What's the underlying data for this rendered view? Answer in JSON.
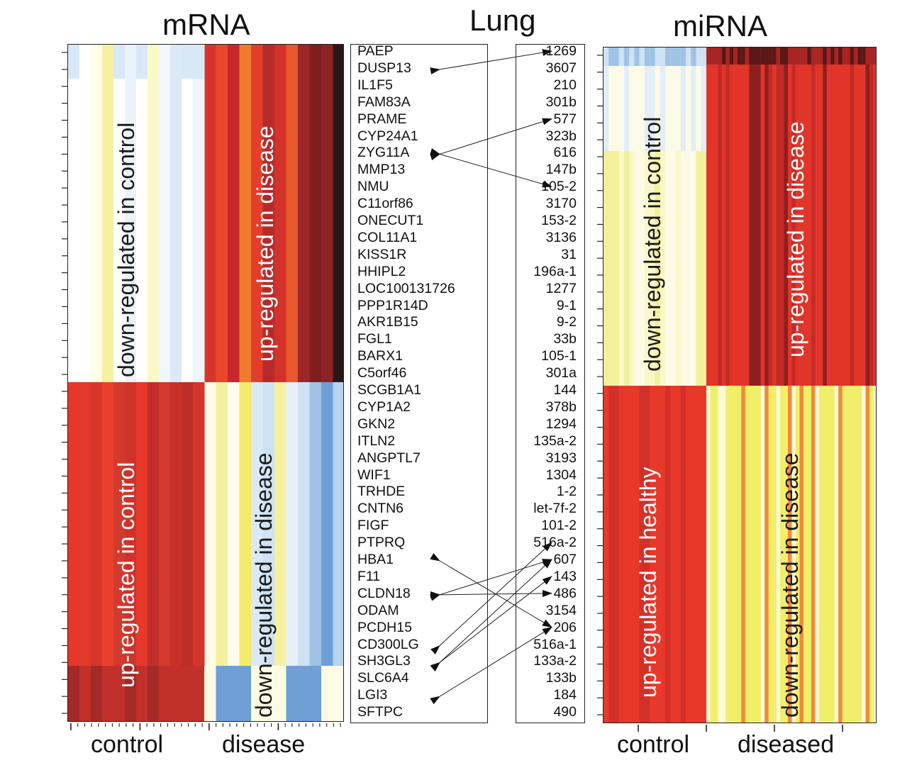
{
  "titles": {
    "mrna": "mRNA",
    "lung": "Lung",
    "mirna": "miRNA"
  },
  "mrna_panel": {
    "quadrant_labels": {
      "top_left": "down-regulated in control",
      "top_right": "up-regulated in disease",
      "bottom_left": "up-regulated in control",
      "bottom_right": "down-regulated in disease"
    },
    "x_labels": {
      "left": "control",
      "right": "disease"
    }
  },
  "mirna_panel": {
    "quadrant_labels": {
      "top_left": "down-regulated in control",
      "top_right": "up-regulated in disease",
      "bottom_left": "up-regulated in healthy",
      "bottom_right": "down-regulated in disease"
    },
    "x_labels": {
      "left": "control",
      "right": "diseased"
    }
  },
  "genes": [
    "PAEP",
    "DUSP13",
    "IL1F5",
    "FAM83A",
    "PRAME",
    "CYP24A1",
    "ZYG11A",
    "MMP13",
    "NMU",
    "C11orf86",
    "ONECUT1",
    "COL11A1",
    "KISS1R",
    "HHIPL2",
    "LOC100131726",
    "PPP1R14D",
    "AKR1B15",
    "FGL1",
    "BARX1",
    "C5orf46",
    "SCGB1A1",
    "CYP1A2",
    "GKN2",
    "ITLN2",
    "ANGPTL7",
    "WIF1",
    "TRHDE",
    "CNTN6",
    "FIGF",
    "PTPRQ",
    "HBA1",
    "F11",
    "CLDN18",
    "ODAM",
    "PCDH15",
    "CD300LG",
    "SH3GL3",
    "SLC6A4",
    "LGI3",
    "SFTPC"
  ],
  "mirnas": [
    "1269",
    "3607",
    "210",
    "301b",
    "577",
    "323b",
    "616",
    "147b",
    "105-2",
    "3170",
    "153-2",
    "3136",
    "31",
    "196a-1",
    "1277",
    "9-1",
    "9-2",
    "33b",
    "105-1",
    "301a",
    "144",
    "378b",
    "1294",
    "135a-2",
    "3193",
    "1304",
    "1-2",
    "let-7f-2",
    "101-2",
    "516a-2",
    "607",
    "143",
    "486",
    "3154",
    "206",
    "516a-1",
    "133a-2",
    "133b",
    "184",
    "490"
  ],
  "colors": {
    "red": "#e8372a",
    "dark_red": "#8e1f1f",
    "blue": "#5b95d0",
    "light_blue": "#cfe2f3",
    "yellow": "#f1ee6a",
    "white": "#ffffff"
  }
}
